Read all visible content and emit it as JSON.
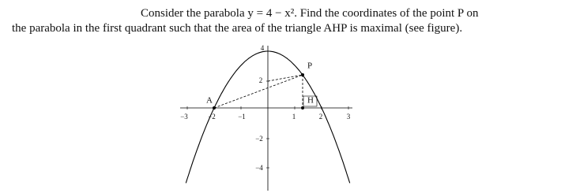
{
  "problem": {
    "lines": [
      "Consider the parabola y = 4 − x². Find the coordinates of the point P on",
      "the parabola in the first quadrant such that the area of the triangle AHP is maximal (see figure)."
    ]
  },
  "figure": {
    "x_tick_labels": [
      "−3",
      "−2",
      "−1",
      "1",
      "2",
      "3"
    ],
    "y_tick_labels": [
      "4",
      "2",
      "−2",
      "−4"
    ],
    "point_labels": [
      "A",
      "P",
      "H"
    ]
  }
}
